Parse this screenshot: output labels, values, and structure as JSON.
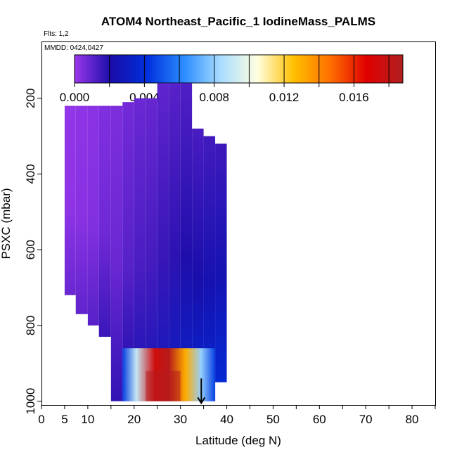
{
  "chart_data": {
    "type": "heatmap",
    "title": "ATOM4 Northeast_Pacific_1 IodineMass_PALMS",
    "annotations": {
      "flights": "Flts: 1,2",
      "dates": "MMDD: 0424,0427"
    },
    "xlabel": "Latitude (deg N)",
    "ylabel": "PSXC (mbar)",
    "xlim": [
      0,
      85
    ],
    "ylim": [
      1010,
      50
    ],
    "y_reversed": true,
    "grid": false,
    "x_ticks": [
      0,
      5,
      10,
      15,
      20,
      25,
      30,
      35,
      40,
      45,
      50,
      55,
      60,
      65,
      70,
      75,
      80,
      85
    ],
    "x_tick_labels": [
      "0",
      "5",
      "10",
      "",
      "20",
      "",
      "30",
      "",
      "40",
      "",
      "50",
      "",
      "60",
      "",
      "70",
      "",
      "80",
      ""
    ],
    "y_ticks": [
      200,
      400,
      600,
      800,
      1000
    ],
    "y_tick_labels": [
      "200",
      "400",
      "600",
      "800",
      "1000"
    ],
    "colorbar": {
      "min": 0.0,
      "max": 0.0188,
      "tick_values": [
        0.0,
        0.004,
        0.008,
        0.012,
        0.016
      ],
      "tick_labels": [
        "0.000",
        "0.004",
        "0.008",
        "0.012",
        "0.016"
      ],
      "divisions": [
        0.0,
        0.002,
        0.004,
        0.006,
        0.008,
        0.01,
        0.012,
        0.014,
        0.016,
        0.018
      ],
      "colors": [
        "#9a38ec",
        "#1a0ca8",
        "#0030dc",
        "#2a8cff",
        "#a8dcff",
        "#ffffe0",
        "#ffc000",
        "#ff7000",
        "#e00000",
        "#b02020"
      ]
    },
    "field": {
      "columns": [
        {
          "lat": [
            5.0,
            7.4
          ],
          "p": [
            220,
            720
          ],
          "value": 0.0002
        },
        {
          "lat": [
            7.4,
            10.0
          ],
          "p": [
            220,
            770
          ],
          "value": 0.0003
        },
        {
          "lat": [
            10.0,
            12.4
          ],
          "p": [
            220,
            800
          ],
          "value": 0.0004
        },
        {
          "lat": [
            12.4,
            15.0
          ],
          "p": [
            220,
            830
          ],
          "value": 0.0007
        },
        {
          "lat": [
            15.0,
            17.5
          ],
          "p": [
            220,
            1000
          ],
          "value": 0.0008
        },
        {
          "lat": [
            17.5,
            20.0
          ],
          "p": [
            210,
            1000
          ],
          "value": 0.0011
        },
        {
          "lat": [
            20.0,
            22.5
          ],
          "p": [
            200,
            1000
          ],
          "value": 0.0013
        },
        {
          "lat": [
            22.5,
            25.0
          ],
          "p": [
            200,
            1000
          ],
          "value": 0.0014
        },
        {
          "lat": [
            25.0,
            27.5
          ],
          "p": [
            160,
            1000
          ],
          "value": 0.0016
        },
        {
          "lat": [
            27.5,
            30.0
          ],
          "p": [
            160,
            1000
          ],
          "value": 0.0018
        },
        {
          "lat": [
            30.0,
            32.5
          ],
          "p": [
            160,
            1000
          ],
          "value": 0.002
        },
        {
          "lat": [
            32.5,
            35.0
          ],
          "p": [
            280,
            1000
          ],
          "value": 0.0022
        },
        {
          "lat": [
            35.0,
            37.5
          ],
          "p": [
            300,
            1000
          ],
          "value": 0.0024
        },
        {
          "lat": [
            37.5,
            40.0
          ],
          "p": [
            320,
            950
          ],
          "value": 0.0025
        }
      ],
      "hot_layer": {
        "lat": [
          17.5,
          37.5
        ],
        "p": [
          860,
          1000
        ],
        "peak_value": 0.0185,
        "peak_lat": [
          22.5,
          30.0
        ],
        "peak_p": [
          920,
          1000
        ]
      }
    },
    "arrow": {
      "lat": 34.5,
      "p_from": 940,
      "p_to": 1005
    }
  }
}
